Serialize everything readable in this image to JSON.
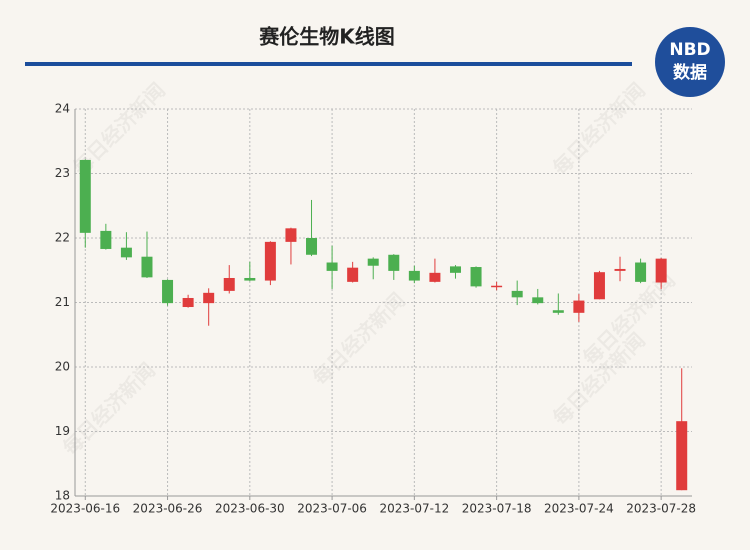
{
  "header": {
    "title": "赛伦生物K线图",
    "logo_top": "NBD",
    "logo_bottom": "数据",
    "watermark": "每日经济新闻"
  },
  "chart_data": {
    "type": "candlestick",
    "title": "赛伦生物K线图",
    "categories": [
      "2023-06-16",
      null,
      null,
      null,
      "2023-06-26",
      null,
      null,
      null,
      "2023-06-30",
      null,
      null,
      null,
      "2023-07-06",
      null,
      null,
      null,
      "2023-07-12",
      null,
      null,
      null,
      "2023-07-18",
      null,
      null,
      null,
      "2023-07-24",
      null,
      null,
      null,
      "2023-07-28",
      null
    ],
    "open": [
      23.21,
      22.11,
      21.85,
      21.71,
      21.35,
      20.93,
      20.99,
      21.18,
      21.38,
      21.34,
      21.94,
      22.0,
      21.62,
      21.32,
      21.68,
      21.74,
      21.49,
      21.32,
      21.56,
      21.55,
      21.24,
      21.18,
      21.08,
      20.88,
      20.84,
      21.05,
      21.49,
      21.62,
      21.31,
      18.09
    ],
    "close": [
      22.08,
      21.83,
      21.7,
      21.39,
      20.99,
      21.07,
      21.15,
      21.38,
      21.34,
      21.94,
      22.15,
      21.74,
      21.49,
      21.54,
      21.57,
      21.49,
      21.34,
      21.46,
      21.46,
      21.25,
      21.26,
      21.08,
      20.99,
      20.84,
      21.03,
      21.47,
      21.52,
      21.32,
      21.68,
      19.16
    ],
    "high": [
      23.22,
      22.22,
      22.09,
      22.1,
      21.36,
      21.12,
      21.22,
      21.58,
      21.63,
      21.95,
      22.16,
      22.59,
      21.88,
      21.63,
      21.7,
      21.75,
      21.57,
      21.68,
      21.58,
      21.56,
      21.32,
      21.34,
      21.21,
      21.14,
      21.13,
      21.49,
      21.71,
      21.68,
      21.69,
      19.98
    ],
    "low": [
      21.85,
      21.82,
      21.66,
      21.38,
      20.95,
      20.92,
      20.64,
      21.14,
      21.33,
      21.27,
      21.59,
      21.72,
      21.21,
      21.31,
      21.36,
      21.35,
      21.3,
      21.31,
      21.37,
      21.23,
      21.19,
      20.96,
      20.97,
      20.81,
      20.7,
      21.05,
      21.33,
      21.3,
      21.21,
      18.09
    ],
    "up_color": "#e03c3c",
    "down_color": "#4caf50",
    "ylim": [
      18,
      24
    ],
    "yticks": [
      18,
      19,
      20,
      21,
      22,
      23,
      24
    ],
    "grid": true
  }
}
